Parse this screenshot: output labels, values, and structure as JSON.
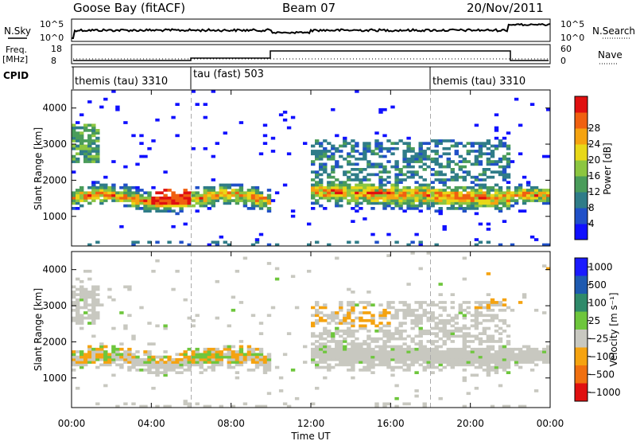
{
  "header": {
    "station": "Goose Bay (fitACF)",
    "beam": "Beam 07",
    "date": "20/Nov/2011"
  },
  "noise_panel": {
    "left_label": "N.Sky",
    "right_label": "N.Search",
    "left_ticks": [
      "10^5",
      "10^0"
    ],
    "right_ticks": [
      "10^5",
      "10^0"
    ]
  },
  "freq_panel": {
    "left_label_line1": "Freq.",
    "left_label_line2": "[MHz]",
    "right_label": "Nave",
    "left_ticks": [
      "18",
      "8"
    ],
    "right_ticks": [
      "60",
      "0"
    ]
  },
  "cpid": {
    "label": "CPID",
    "segments": [
      {
        "name": "themis (tau) 3310",
        "start_h": 0,
        "end_h": 6
      },
      {
        "name": "tau (fast) 503",
        "start_h": 6,
        "end_h": 18
      },
      {
        "name": "themis (tau) 3310",
        "start_h": 18,
        "end_h": 24
      }
    ]
  },
  "chart_data": [
    {
      "type": "heatmap",
      "title": "",
      "xlabel": "Time UT",
      "ylabel": "Slant Range [km]",
      "x_range_hours": [
        0,
        24
      ],
      "ylim": [
        180,
        4500
      ],
      "yticks": [
        "1000",
        "2000",
        "3000",
        "4000"
      ],
      "colorbar_label": "Power [dB]",
      "colorbar_ticks": [
        "4",
        "8",
        "12",
        "16",
        "20",
        "24",
        "28"
      ],
      "colors": [
        "#1010ff",
        "#2050c8",
        "#2f7c88",
        "#4a9c5a",
        "#8cc640",
        "#e8d818",
        "#f5a310",
        "#f06010",
        "#e01010"
      ]
    },
    {
      "type": "heatmap",
      "title": "",
      "xlabel": "Time UT",
      "ylabel": "Slant Range [km]",
      "x_range_hours": [
        0,
        24
      ],
      "ylim": [
        180,
        4500
      ],
      "yticks": [
        "1000",
        "2000",
        "3000",
        "4000"
      ],
      "colorbar_label": "Velocity [m s⁻¹]",
      "colorbar_ticks": [
        "1000",
        "500",
        "100",
        "25",
        "−25",
        "−100",
        "−500",
        "−1000"
      ],
      "colors": [
        "#1a1aff",
        "#1e5ab0",
        "#2f8a6a",
        "#6ec63c",
        "#c8c8c0",
        "#f5a310",
        "#f07010",
        "#e01010"
      ]
    }
  ],
  "time_axis": {
    "label": "Time UT",
    "ticks": [
      "00:00",
      "04:00",
      "08:00",
      "12:00",
      "16:00",
      "20:00",
      "00:00"
    ]
  }
}
